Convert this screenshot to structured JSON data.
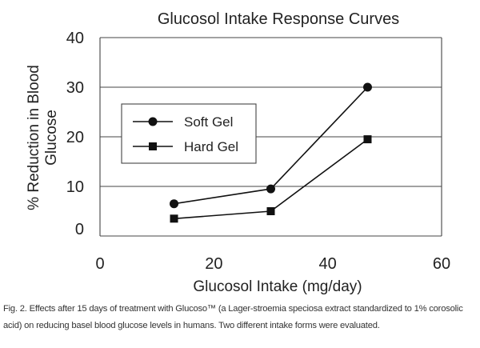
{
  "chart_data": {
    "type": "line",
    "title": "Glucosol Intake Response Curves",
    "xlabel": "Glucosol Intake (mg/day)",
    "ylabel": "% Reduction in Blood Glucose",
    "xlim": [
      0,
      60
    ],
    "ylim": [
      0,
      40
    ],
    "x_ticks": [
      "0",
      "20",
      "40",
      "60"
    ],
    "y_ticks": [
      "0",
      "10",
      "20",
      "30",
      "40"
    ],
    "grid": "horizontal",
    "legend": "upper-left",
    "series": [
      {
        "name": "Soft Gel",
        "marker": "circle",
        "points": [
          {
            "x": 13,
            "y": 6.5
          },
          {
            "x": 30,
            "y": 9.5
          },
          {
            "x": 47,
            "y": 30
          }
        ]
      },
      {
        "name": "Hard Gel",
        "marker": "square",
        "points": [
          {
            "x": 13,
            "y": 3.5
          },
          {
            "x": 30,
            "y": 5
          },
          {
            "x": 47,
            "y": 19.5
          }
        ]
      }
    ]
  },
  "caption": "Fig. 2. Effects after 15 days of treatment with Glucoso™ (a Lager-stroemia speciosa extract standardized to 1% corosolic acid) on reducing basel blood glucose levels in humans. Two different intake forms were evaluated.",
  "colors": {
    "line": "#111111",
    "grid": "#444444"
  }
}
